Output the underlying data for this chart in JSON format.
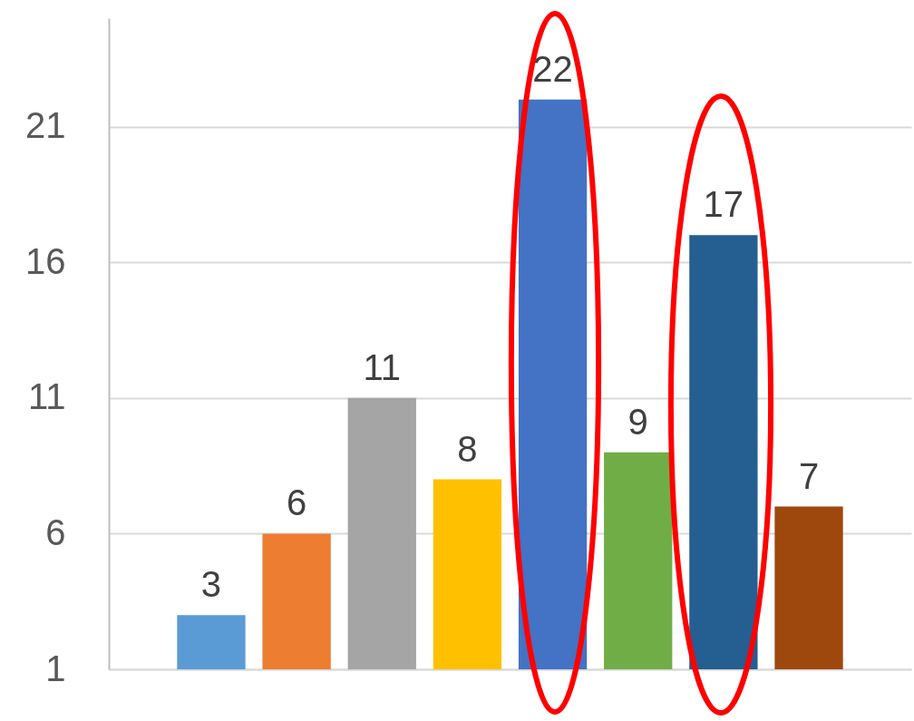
{
  "chart_data": {
    "type": "bar",
    "categories": [
      null,
      null,
      null,
      null,
      null,
      null,
      null,
      null
    ],
    "values": [
      3,
      6,
      11,
      8,
      22,
      9,
      17,
      7
    ],
    "colors": [
      "#5b9bd5",
      "#ed7d31",
      "#a5a5a5",
      "#ffc000",
      "#4472c4",
      "#70ad47",
      "#255e91",
      "#9e480e"
    ],
    "ylim": [
      1,
      25
    ],
    "yticks": [
      1,
      6,
      11,
      16,
      21
    ],
    "grid": "y",
    "data_labels": true,
    "tick_labels": "y"
  }
}
